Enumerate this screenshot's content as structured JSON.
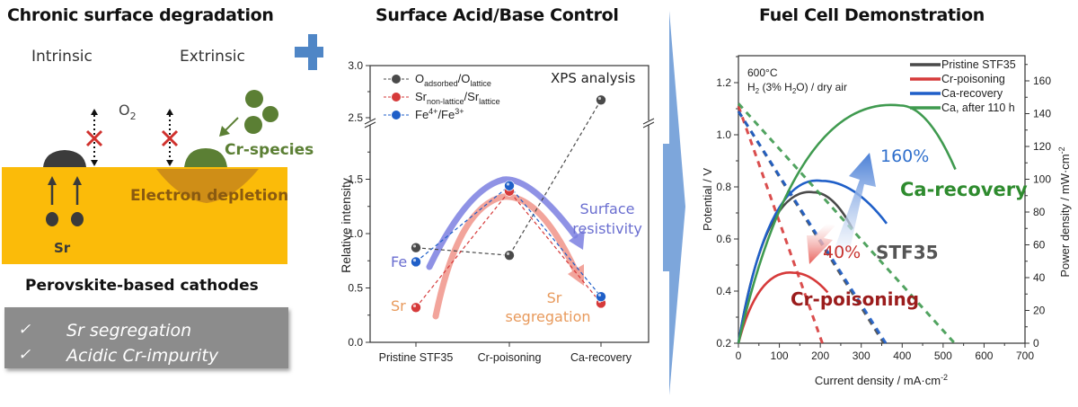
{
  "panels": {
    "left": {
      "title": "Chronic surface degradation",
      "intrinsic_label": "Intrinsic",
      "extrinsic_label": "Extrinsic",
      "o2_label": "O",
      "o2_sub": "2",
      "cr_species_label": "Cr-species",
      "electron_depletion_label": "Electron depletion",
      "sr_label": "Sr",
      "cathode_label": "Perovskite-based cathodes",
      "checklist": [
        {
          "check": "✓",
          "text": "Sr segregation"
        },
        {
          "check": "✓",
          "text": "Acidic Cr-impurity"
        }
      ],
      "colors": {
        "cathode": "#fbbb09",
        "cr_species": "#5b7f34",
        "sr": "#3a3a3a",
        "cross": "#d0312d",
        "checklist_bg": "#8c8c8c",
        "plus": "#4f86c6"
      }
    },
    "middle": {
      "title": "Surface Acid/Base Control"
    },
    "right": {
      "title": "Fuel Cell Demonstration"
    }
  },
  "chart_data": [
    {
      "type": "scatter",
      "title": "XPS analysis",
      "xlabel": "",
      "ylabel": "Relative intensity",
      "categories": [
        "Pristine STF35",
        "Cr-poisoning",
        "Ca-recovery"
      ],
      "y_ticks": [
        "0.0",
        "0.5",
        "1.0",
        "1.5",
        "2.5",
        "3.0"
      ],
      "axis_break": {
        "from": 1.75,
        "to": 2.5
      },
      "ylim": [
        0.0,
        3.0
      ],
      "series": [
        {
          "name": "O_adsorbed/O_lattice",
          "legend_main": "O",
          "legend_sub1": "adsorbed",
          "legend_mid": "/O",
          "legend_sub2": "lattice",
          "color": "#4a4a4a",
          "values": [
            0.87,
            0.8,
            2.67
          ]
        },
        {
          "name": "Sr_non-lattice/Sr_lattice",
          "legend_main": "Sr",
          "legend_sub1": "non-lattice",
          "legend_mid": "/Sr",
          "legend_sub2": "lattice",
          "color": "#d63a3a",
          "values": [
            0.32,
            1.39,
            0.36
          ]
        },
        {
          "name": "Fe4+/Fe3+",
          "legend_main": "Fe",
          "legend_sup1": "4+",
          "legend_mid": "/Fe",
          "legend_sup2": "3+",
          "color": "#1f5fc8",
          "values": [
            0.74,
            1.44,
            0.42
          ]
        }
      ],
      "annotations": {
        "fe_label": "Fe",
        "sr_label": "Sr",
        "surface_resistivity": [
          "Surface",
          "resistivity"
        ],
        "sr_segregation": [
          "Sr",
          "segregation"
        ],
        "fe_arrow_color": "#7b7fe0",
        "sr_arrow_color": "#f0948a",
        "fe_text_color": "#6a6ed0",
        "sr_text_color": "#e89a5c"
      }
    },
    {
      "type": "line",
      "title": "",
      "xlabel": "Current density / mA·cm",
      "xlabel_sup": "-2",
      "ylabel": "Potential / V",
      "y2label": "Power density / mW·cm",
      "y2label_sup": "-2",
      "xlim": [
        0,
        700
      ],
      "ylim": [
        0.2,
        1.3
      ],
      "y2lim": [
        0,
        175
      ],
      "x_ticks": [
        0,
        100,
        200,
        300,
        400,
        500,
        600,
        700
      ],
      "y_ticks": [
        "0.2",
        "0.4",
        "0.6",
        "0.8",
        "1.0",
        "1.2"
      ],
      "y2_ticks": [
        0,
        20,
        40,
        60,
        80,
        100,
        120,
        140,
        160
      ],
      "conditions": [
        "600°C",
        "H2 (3% H2O) / dry air"
      ],
      "legend_position": "top-right",
      "series": [
        {
          "name": "Pristine STF35",
          "color": "#4a4a4a",
          "ocv": 1.09,
          "iv_end": [
            355,
            0.2
          ],
          "power_peak": [
            184,
            92
          ],
          "power_end": [
            278,
            70
          ]
        },
        {
          "name": "Cr-poisoning",
          "color": "#d63a3a",
          "ocv": 1.11,
          "iv_end": [
            205,
            0.2
          ],
          "power_peak": [
            134,
            43
          ],
          "power_end": [
            218,
            31
          ]
        },
        {
          "name": "Ca-recovery",
          "color": "#1f5fc8",
          "ocv": 1.09,
          "iv_end": [
            360,
            0.2
          ],
          "power_peak": [
            203,
            99
          ],
          "power_end": [
            362,
            73
          ]
        },
        {
          "name": "Ca, after 110 h",
          "color": "#3f9a4f",
          "ocv": 1.12,
          "iv_end": [
            528,
            0.2
          ],
          "power_peak": [
            395,
            145
          ],
          "power_end": [
            530,
            106
          ]
        }
      ],
      "annotations": {
        "up_percent": "160%",
        "down_percent": "40%",
        "ca_recovery_label": "Ca-recovery",
        "stf35_label": "STF35",
        "cr_poisoning_label": "Cr-poisoning",
        "up_color": "#2f6fcc",
        "down_color": "#c8332f",
        "ca_label_color": "#2e8b2e",
        "stf_label_color": "#555555",
        "cr_label_color": "#9b1c1c"
      }
    }
  ]
}
